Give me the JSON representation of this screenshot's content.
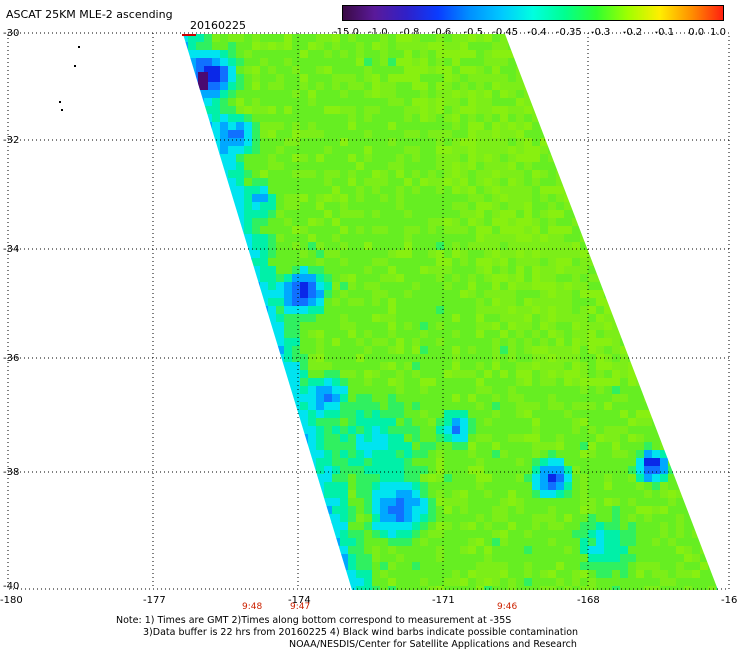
{
  "header": {
    "title": "ASCAT 25KM MLE-2 ascending",
    "date": "20160225"
  },
  "colorbar": {
    "labels": [
      "-15.0",
      "-1.0",
      "-0.8",
      "-0.6",
      "-0.5",
      "-0.45",
      "-0.4",
      "-0.35",
      "-0.3",
      "-0.2",
      "-0.1",
      "0.0",
      "1.0"
    ],
    "colors": [
      "#3a0a44",
      "#5a1a9a",
      "#3020c8",
      "#0a3cff",
      "#0090ff",
      "#00c8ff",
      "#00ffe0",
      "#00ff90",
      "#30ff30",
      "#a0ff00",
      "#ffee00",
      "#ff9000",
      "#ff2010"
    ]
  },
  "map": {
    "lat_labels": [
      "-30",
      "-32",
      "-34",
      "-36",
      "-38",
      "-40"
    ],
    "lon_labels": [
      "-180",
      "-177",
      "-174",
      "-171",
      "-168",
      "-16"
    ],
    "time_labels": [
      "9:48",
      "9:47",
      "9:46"
    ],
    "swath_color": "#66ee22",
    "low_color": "#0a30e0",
    "mid_color": "#00e8e8"
  },
  "notes": {
    "line1": "Note: 1) Times are GMT 2)Times along bottom correspond to measurement at -35S",
    "line2": "3)Data buffer is 22 hrs from 20160225 4) Black wind barbs indicate possible contamination",
    "line3": "NOAA/NESDIS/Center for Satellite Applications and Research"
  }
}
